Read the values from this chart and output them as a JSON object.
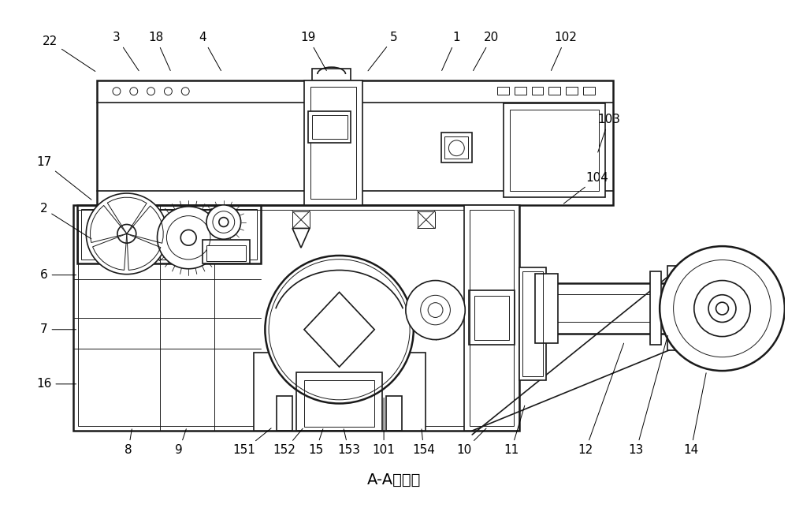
{
  "title": "A-A剖面图",
  "title_fontsize": 14,
  "bg_color": "#ffffff",
  "line_color": "#1a1a1a",
  "lw_heavy": 1.8,
  "lw_med": 1.2,
  "lw_thin": 0.7
}
